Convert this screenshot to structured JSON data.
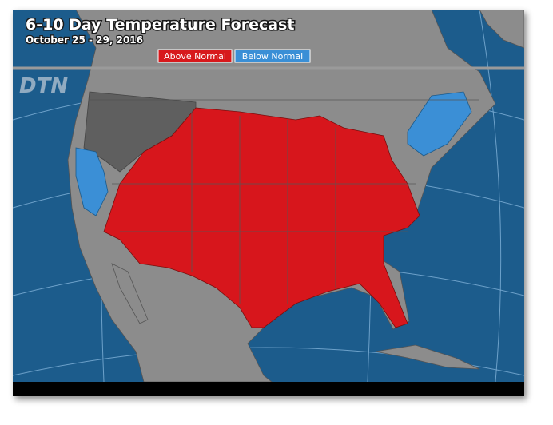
{
  "header": {
    "title": "6-10 Day Temperature Forecast",
    "subtitle": "October 25 - 29, 2016"
  },
  "legend": {
    "items": [
      {
        "label": "Above Normal",
        "color": "#d7191c"
      },
      {
        "label": "Below Normal",
        "color": "#3a8fd6"
      }
    ]
  },
  "logo": "DTN"
}
